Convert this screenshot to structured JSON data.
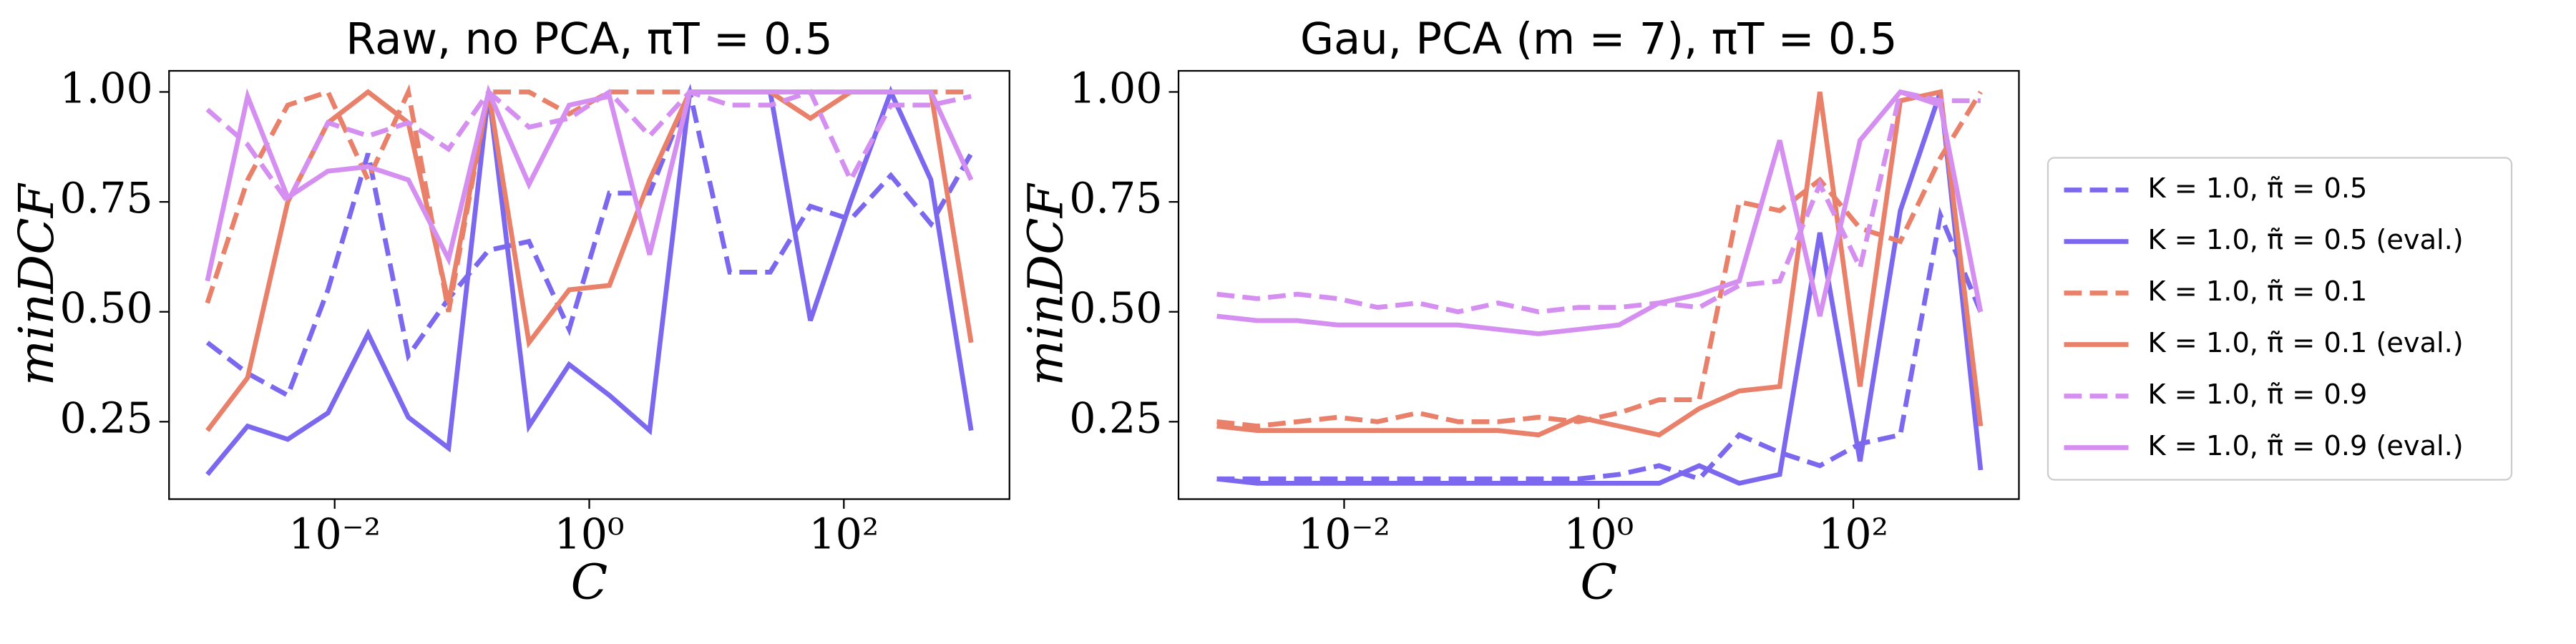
{
  "chart_data": [
    {
      "type": "line",
      "title": "Raw, no PCA, πT = 0.5",
      "x_label": "C",
      "y_label": "minDCF",
      "x": [
        0.001,
        0.00207,
        0.00428,
        0.00886,
        0.0183,
        0.0379,
        0.0785,
        0.162,
        0.336,
        0.695,
        1.44,
        2.98,
        6.16,
        12.7,
        26.4,
        54.6,
        113,
        234,
        483,
        1000
      ],
      "xscale": "log",
      "xlim": [
        0.0005,
        2000
      ],
      "xticks": [
        {
          "value": 0.01,
          "label": "10⁻²"
        },
        {
          "value": 1,
          "label": "10⁰"
        },
        {
          "value": 100,
          "label": "10²"
        }
      ],
      "ylim": [
        0.074,
        1.048
      ],
      "yticks": [
        {
          "value": 0.25,
          "label": "0.25"
        },
        {
          "value": 0.5,
          "label": "0.50"
        },
        {
          "value": 0.75,
          "label": "0.75"
        },
        {
          "value": 1.0,
          "label": "1.00"
        }
      ],
      "series": [
        {
          "color": "#7b68ee",
          "linestyle": "dashed",
          "values": [
            0.43,
            0.36,
            0.31,
            0.55,
            0.86,
            0.4,
            0.53,
            0.64,
            0.66,
            0.46,
            0.77,
            0.77,
            1.0,
            0.59,
            0.59,
            0.74,
            0.71,
            0.81,
            0.7,
            0.86
          ]
        },
        {
          "color": "#7b68ee",
          "linestyle": "solid",
          "values": [
            0.13,
            0.24,
            0.21,
            0.27,
            0.45,
            0.26,
            0.19,
            1.0,
            0.24,
            0.38,
            0.31,
            0.23,
            1.0,
            1.0,
            1.0,
            0.48,
            0.75,
            1.0,
            0.8,
            0.23
          ]
        },
        {
          "color": "#e8806a",
          "linestyle": "dashed",
          "values": [
            0.52,
            0.8,
            0.97,
            1.0,
            0.8,
            1.0,
            0.5,
            1.0,
            1.0,
            0.95,
            1.0,
            1.0,
            1.0,
            1.0,
            1.0,
            1.0,
            1.0,
            1.0,
            1.0,
            1.0
          ]
        },
        {
          "color": "#e8806a",
          "linestyle": "solid",
          "values": [
            0.23,
            0.35,
            0.75,
            0.93,
            1.0,
            0.93,
            0.52,
            1.0,
            0.43,
            0.55,
            0.56,
            0.8,
            1.0,
            1.0,
            1.0,
            0.94,
            1.0,
            1.0,
            1.0,
            0.43
          ]
        },
        {
          "color": "#d58ff0",
          "linestyle": "dashed",
          "values": [
            0.96,
            0.88,
            0.75,
            0.93,
            0.9,
            0.93,
            0.87,
            1.0,
            0.92,
            0.94,
            1.0,
            0.9,
            1.0,
            0.97,
            0.97,
            1.0,
            0.8,
            0.97,
            0.97,
            0.99
          ]
        },
        {
          "color": "#d58ff0",
          "linestyle": "solid",
          "values": [
            0.57,
            0.99,
            0.76,
            0.82,
            0.83,
            0.8,
            0.62,
            1.0,
            0.79,
            0.97,
            0.99,
            0.63,
            1.0,
            1.0,
            1.0,
            1.0,
            1.0,
            1.0,
            1.0,
            0.8
          ]
        }
      ]
    },
    {
      "type": "line",
      "title": "Gau, PCA (m = 7), πT = 0.5",
      "x_label": "C",
      "y_label": "minDCF",
      "x": [
        0.001,
        0.00207,
        0.00428,
        0.00886,
        0.0183,
        0.0379,
        0.0785,
        0.162,
        0.336,
        0.695,
        1.44,
        2.98,
        6.16,
        12.7,
        26.4,
        54.6,
        113,
        234,
        483,
        1000
      ],
      "xscale": "log",
      "xlim": [
        0.0005,
        2000
      ],
      "xticks": [
        {
          "value": 0.01,
          "label": "10⁻²"
        },
        {
          "value": 1,
          "label": "10⁰"
        },
        {
          "value": 100,
          "label": "10²"
        }
      ],
      "ylim": [
        0.074,
        1.048
      ],
      "yticks": [
        {
          "value": 0.25,
          "label": "0.25"
        },
        {
          "value": 0.5,
          "label": "0.50"
        },
        {
          "value": 0.75,
          "label": "0.75"
        },
        {
          "value": 1.0,
          "label": "1.00"
        }
      ],
      "legend": "outside right",
      "series": [
        {
          "name": "K = 1.0, π̃ = 0.5",
          "color": "#7b68ee",
          "linestyle": "dashed",
          "values": [
            0.12,
            0.12,
            0.12,
            0.12,
            0.12,
            0.12,
            0.12,
            0.12,
            0.12,
            0.12,
            0.13,
            0.15,
            0.12,
            0.22,
            0.18,
            0.15,
            0.2,
            0.22,
            0.72,
            0.5
          ]
        },
        {
          "name": "K = 1.0, π̃ = 0.5 (eval.)",
          "color": "#7b68ee",
          "linestyle": "solid",
          "values": [
            0.12,
            0.11,
            0.11,
            0.11,
            0.11,
            0.11,
            0.11,
            0.11,
            0.11,
            0.11,
            0.11,
            0.11,
            0.15,
            0.11,
            0.13,
            0.68,
            0.16,
            0.73,
            1.0,
            0.14
          ]
        },
        {
          "name": "K = 1.0, π̃ = 0.1",
          "color": "#e8806a",
          "linestyle": "dashed",
          "values": [
            0.25,
            0.24,
            0.25,
            0.26,
            0.25,
            0.27,
            0.25,
            0.25,
            0.26,
            0.25,
            0.27,
            0.3,
            0.3,
            0.75,
            0.73,
            0.8,
            0.69,
            0.66,
            0.85,
            1.0
          ]
        },
        {
          "name": "K = 1.0, π̃ = 0.1 (eval.)",
          "color": "#e8806a",
          "linestyle": "solid",
          "values": [
            0.24,
            0.23,
            0.23,
            0.23,
            0.23,
            0.23,
            0.23,
            0.23,
            0.22,
            0.26,
            0.24,
            0.22,
            0.28,
            0.32,
            0.33,
            1.0,
            0.33,
            0.98,
            1.0,
            0.24
          ]
        },
        {
          "name": "K = 1.0, π̃ = 0.9",
          "color": "#d58ff0",
          "linestyle": "dashed",
          "values": [
            0.54,
            0.53,
            0.54,
            0.53,
            0.51,
            0.52,
            0.5,
            0.52,
            0.5,
            0.51,
            0.51,
            0.52,
            0.51,
            0.56,
            0.57,
            0.79,
            0.6,
            1.0,
            0.98,
            0.98
          ]
        },
        {
          "name": "K = 1.0, π̃ = 0.9 (eval.)",
          "color": "#d58ff0",
          "linestyle": "solid",
          "values": [
            0.49,
            0.48,
            0.48,
            0.47,
            0.47,
            0.47,
            0.47,
            0.46,
            0.45,
            0.46,
            0.47,
            0.52,
            0.54,
            0.57,
            0.89,
            0.49,
            0.89,
            1.0,
            0.97,
            0.5
          ]
        }
      ]
    }
  ]
}
